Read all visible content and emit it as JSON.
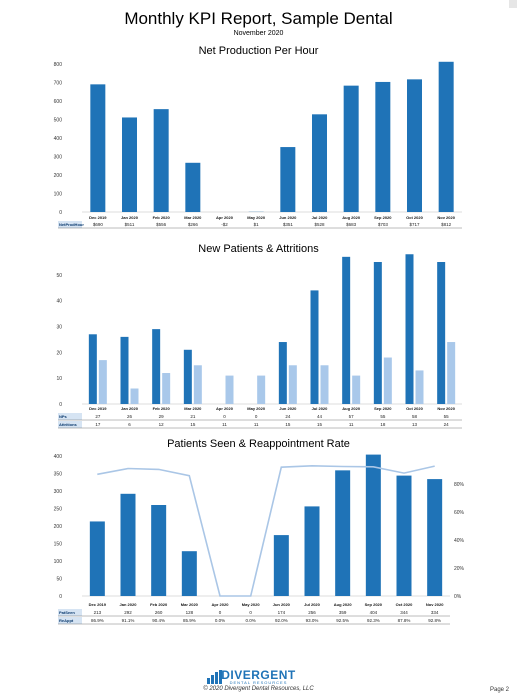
{
  "report": {
    "title": "Monthly KPI Report, Sample Dental",
    "subtitle": "November 2020",
    "footer_brand": "DIVERGENT",
    "footer_brand_sub": "DENTAL RESOURCES",
    "copyright": "© 2020 Divergent Dental Resources, LLC",
    "page": "Page 2"
  },
  "colors": {
    "primary": "#1f73b7",
    "secondary": "#a9c8ea",
    "line": "#aac6e6",
    "label_cell": "#1f73b7"
  },
  "chart_data": [
    {
      "type": "bar",
      "title": "Net Production Per Hour",
      "categories": [
        "Dec 2019",
        "Jan 2020",
        "Feb 2020",
        "Mar 2020",
        "Apr 2020",
        "May 2020",
        "Jun 2020",
        "Jul 2020",
        "Aug 2020",
        "Sep 2020",
        "Oct 2020",
        "Nov 2020"
      ],
      "ylim": [
        0,
        800
      ],
      "yticks": [
        0,
        100,
        200,
        300,
        400,
        500,
        600,
        700,
        800
      ],
      "series": [
        {
          "values": [
            690,
            511,
            556,
            266,
            -2,
            1,
            351,
            528,
            683,
            703,
            717,
            812
          ]
        }
      ],
      "table": [
        {
          "label": "NetProdHour",
          "cells": [
            "$690",
            "$511",
            "$556",
            "$266",
            "-$2",
            "$1",
            "$351",
            "$528",
            "$683",
            "$703",
            "$717",
            "$812"
          ]
        }
      ]
    },
    {
      "type": "bar",
      "title": "New Patients & Attritions",
      "categories": [
        "Dec 2019",
        "Jan 2020",
        "Feb 2020",
        "Mar 2020",
        "Apr 2020",
        "May 2020",
        "Jun 2020",
        "Jul 2020",
        "Aug 2020",
        "Sep 2020",
        "Oct 2020",
        "Nov 2020"
      ],
      "ylim": [
        0,
        55
      ],
      "yticks": [
        0,
        10,
        20,
        30,
        40,
        50
      ],
      "series": [
        {
          "values": [
            27,
            26,
            29,
            21,
            0,
            0,
            24,
            44,
            57,
            55,
            58,
            55
          ]
        },
        {
          "values": [
            17,
            6,
            12,
            15,
            11,
            11,
            15,
            15,
            11,
            18,
            13,
            24
          ]
        }
      ],
      "table": [
        {
          "label": "NPs",
          "cells": [
            "27",
            "26",
            "29",
            "21",
            "0",
            "0",
            "24",
            "44",
            "57",
            "55",
            "58",
            "55"
          ]
        },
        {
          "label": "Attritions",
          "cells": [
            "17",
            "6",
            "12",
            "15",
            "11",
            "11",
            "15",
            "15",
            "11",
            "18",
            "13",
            "24"
          ]
        }
      ]
    },
    {
      "type": "bar",
      "title": "Patients Seen & Reappointment Rate",
      "categories": [
        "Dec 2019",
        "Jan 2020",
        "Feb 2020",
        "Mar 2020",
        "Apr 2020",
        "May 2020",
        "Jun 2020",
        "Jul 2020",
        "Aug 2020",
        "Sep 2020",
        "Oct 2020",
        "Nov 2020"
      ],
      "ylim": [
        0,
        400
      ],
      "yticks": [
        0,
        50,
        100,
        150,
        200,
        250,
        300,
        350,
        400
      ],
      "y2lim": [
        0,
        100
      ],
      "y2ticks": [
        "0%",
        "20%",
        "40%",
        "60%",
        "80%"
      ],
      "series": [
        {
          "values": [
            213,
            292,
            260,
            128,
            0,
            0,
            174,
            256,
            359,
            404,
            344,
            334
          ]
        },
        {
          "values": [
            86.9,
            91.1,
            90.4,
            85.9,
            0.0,
            0.0,
            92.0,
            93.0,
            92.5,
            92.3,
            87.8,
            92.8
          ]
        }
      ],
      "table": [
        {
          "label": "PatSeen",
          "cells": [
            "213",
            "292",
            "260",
            "128",
            "0",
            "0",
            "174",
            "256",
            "359",
            "404",
            "344",
            "334"
          ]
        },
        {
          "label": "ReAppt",
          "cells": [
            "86.9%",
            "91.1%",
            "90.4%",
            "85.9%",
            "0.0%",
            "0.0%",
            "92.0%",
            "93.0%",
            "92.5%",
            "92.3%",
            "87.8%",
            "92.8%"
          ]
        }
      ]
    }
  ]
}
